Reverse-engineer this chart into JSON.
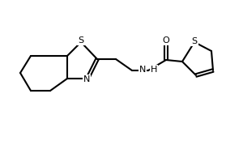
{
  "background_color": "#ffffff",
  "line_color": "#000000",
  "figsize": [
    3.0,
    2.0
  ],
  "dpi": 100,
  "lw": 1.5,
  "atoms": {
    "S1_label": "S",
    "N_label": "N",
    "NH_label": "H",
    "O_label": "O",
    "S2_label": "S"
  }
}
